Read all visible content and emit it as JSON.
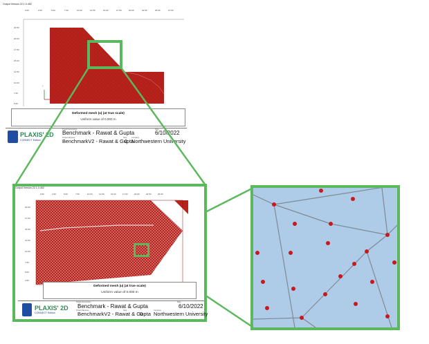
{
  "top_window": {
    "version_text": "Output Version 22.1.0.452",
    "x_ticks": [
      "0.00",
      "2.50",
      "5.00",
      "7.50",
      "10.00",
      "12.50",
      "15.00",
      "17.50",
      "20.00",
      "22.50",
      "25.00",
      "27.50"
    ],
    "y_ticks": [
      "22.50",
      "20.00",
      "17.50",
      "15.00",
      "12.50",
      "10.00",
      "7.50",
      "5.00",
      "2.50"
    ],
    "legend_title": "Deformed mesh |u| (at true scale)",
    "legend_value": "Uniform value of 0.000 m",
    "axis_y_label": "y",
    "axis_x_label": "x"
  },
  "bottom_window": {
    "version_text": "Output Version 22.1.0.452",
    "x_ticks": [
      "0.00",
      "2.50",
      "5.00",
      "7.50",
      "10.00",
      "12.50",
      "15.00",
      "17.50",
      "20.00",
      "22.50",
      "25.00"
    ],
    "y_ticks": [
      "20.00",
      "17.50",
      "15.00",
      "12.50",
      "10.00",
      "7.50",
      "5.00",
      "2.50"
    ],
    "legend_title": "Deformed mesh |u| (at true scale)",
    "legend_value": "Uniform value of 0.000 m"
  },
  "title_block": {
    "brand": "PLAXIS' 2D",
    "edition": "CONNECT Edition",
    "project_description_label": "Project description",
    "project_description": "Benchmark - Rawat & Gupta",
    "project_filename_label": "Project filename",
    "project_filename": "BenchmarkV2 - Rawat & Gupta",
    "step_label": "Step",
    "step": "0",
    "date_label": "Date",
    "date": "6/10/2022",
    "company_label": "Company",
    "company": "Northwestern University",
    "user_label": "User"
  },
  "colors": {
    "mesh_red": "#b8221c",
    "highlight_green": "#5cb85c",
    "zoom_bg": "#aecbe8",
    "node_red": "#c8181c",
    "brand_green": "#2e8b57",
    "logo_blue": "#1e4da1"
  }
}
